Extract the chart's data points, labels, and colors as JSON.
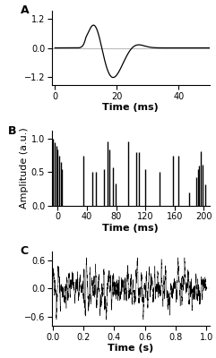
{
  "panel_A": {
    "label": "A",
    "xlabel": "Time (ms)",
    "yticks": [
      -1.2,
      0.0,
      1.2
    ],
    "xticks": [
      0,
      20,
      40
    ],
    "xlim": [
      -1,
      50
    ],
    "ylim": [
      -1.55,
      1.55
    ]
  },
  "panel_B": {
    "label": "B",
    "xlabel": "Time (ms)",
    "ylabel": "Amplitude (a.u.)",
    "yticks": [
      0,
      0.5,
      1
    ],
    "xticks": [
      0,
      40,
      80,
      120,
      160,
      200
    ],
    "xlim": [
      -8,
      208
    ],
    "ylim": [
      0,
      1.12
    ],
    "spikes": [
      [
        -6,
        1.0
      ],
      [
        -4,
        0.95
      ],
      [
        -2,
        0.9
      ],
      [
        0,
        0.85
      ],
      [
        2,
        0.75
      ],
      [
        4,
        0.65
      ],
      [
        6,
        0.55
      ],
      [
        35,
        0.75
      ],
      [
        48,
        0.5
      ],
      [
        52,
        0.5
      ],
      [
        63,
        0.55
      ],
      [
        68,
        0.97
      ],
      [
        71,
        0.85
      ],
      [
        76,
        0.57
      ],
      [
        79,
        0.33
      ],
      [
        97,
        0.97
      ],
      [
        108,
        0.8
      ],
      [
        111,
        0.8
      ],
      [
        120,
        0.55
      ],
      [
        140,
        0.5
      ],
      [
        158,
        0.75
      ],
      [
        165,
        0.75
      ],
      [
        180,
        0.2
      ],
      [
        190,
        0.42
      ],
      [
        192,
        0.55
      ],
      [
        194,
        0.6
      ],
      [
        196,
        0.82
      ],
      [
        198,
        0.62
      ],
      [
        202,
        0.32
      ]
    ]
  },
  "panel_C": {
    "label": "C",
    "xlabel": "Time (s)",
    "yticks": [
      -0.6,
      0,
      0.6
    ],
    "xticks": [
      0,
      0.2,
      0.4,
      0.6,
      0.8,
      1.0
    ],
    "xlim": [
      -0.005,
      1.02
    ],
    "ylim": [
      -0.78,
      0.78
    ]
  },
  "line_color": "#000000",
  "bg_color": "#ffffff",
  "label_fontsize": 8,
  "tick_fontsize": 7,
  "panel_label_fontsize": 9
}
